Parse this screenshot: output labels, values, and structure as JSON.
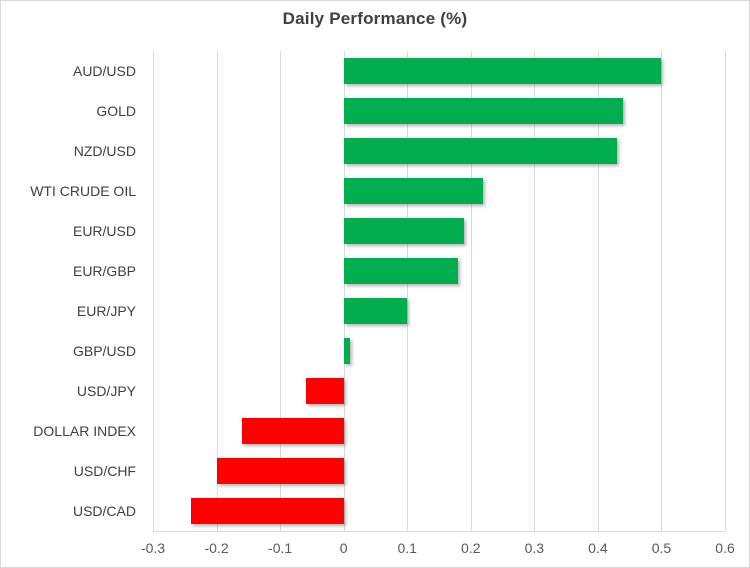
{
  "title": "Daily Performance (%)",
  "colors": {
    "positive_bar": "#00ae50",
    "negative_bar": "#ff0000",
    "gridline": "#d9d9d9",
    "title_text": "#404040",
    "category_text": "#404040",
    "tick_text": "#595959"
  },
  "chart_data": {
    "type": "bar",
    "orientation": "horizontal",
    "title": "Daily Performance (%)",
    "categories": [
      "AUD/USD",
      "GOLD",
      "NZD/USD",
      "WTI CRUDE OIL",
      "EUR/USD",
      "EUR/GBP",
      "EUR/JPY",
      "GBP/USD",
      "USD/JPY",
      "DOLLAR INDEX",
      "USD/CHF",
      "USD/CAD"
    ],
    "values": [
      0.5,
      0.44,
      0.43,
      0.22,
      0.19,
      0.18,
      0.1,
      0.01,
      -0.06,
      -0.16,
      -0.2,
      -0.24
    ],
    "xlabel": "",
    "ylabel": "",
    "xlim": [
      -0.3,
      0.6
    ],
    "xticks": [
      -0.3,
      -0.2,
      -0.1,
      0,
      0.1,
      0.2,
      0.3,
      0.4,
      0.5,
      0.6
    ],
    "tick_labels": [
      "-0.3",
      "-0.2",
      "-0.1",
      "0",
      "0.1",
      "0.2",
      "0.3",
      "0.4",
      "0.5",
      "0.6"
    ],
    "grid": true,
    "legend": false
  }
}
